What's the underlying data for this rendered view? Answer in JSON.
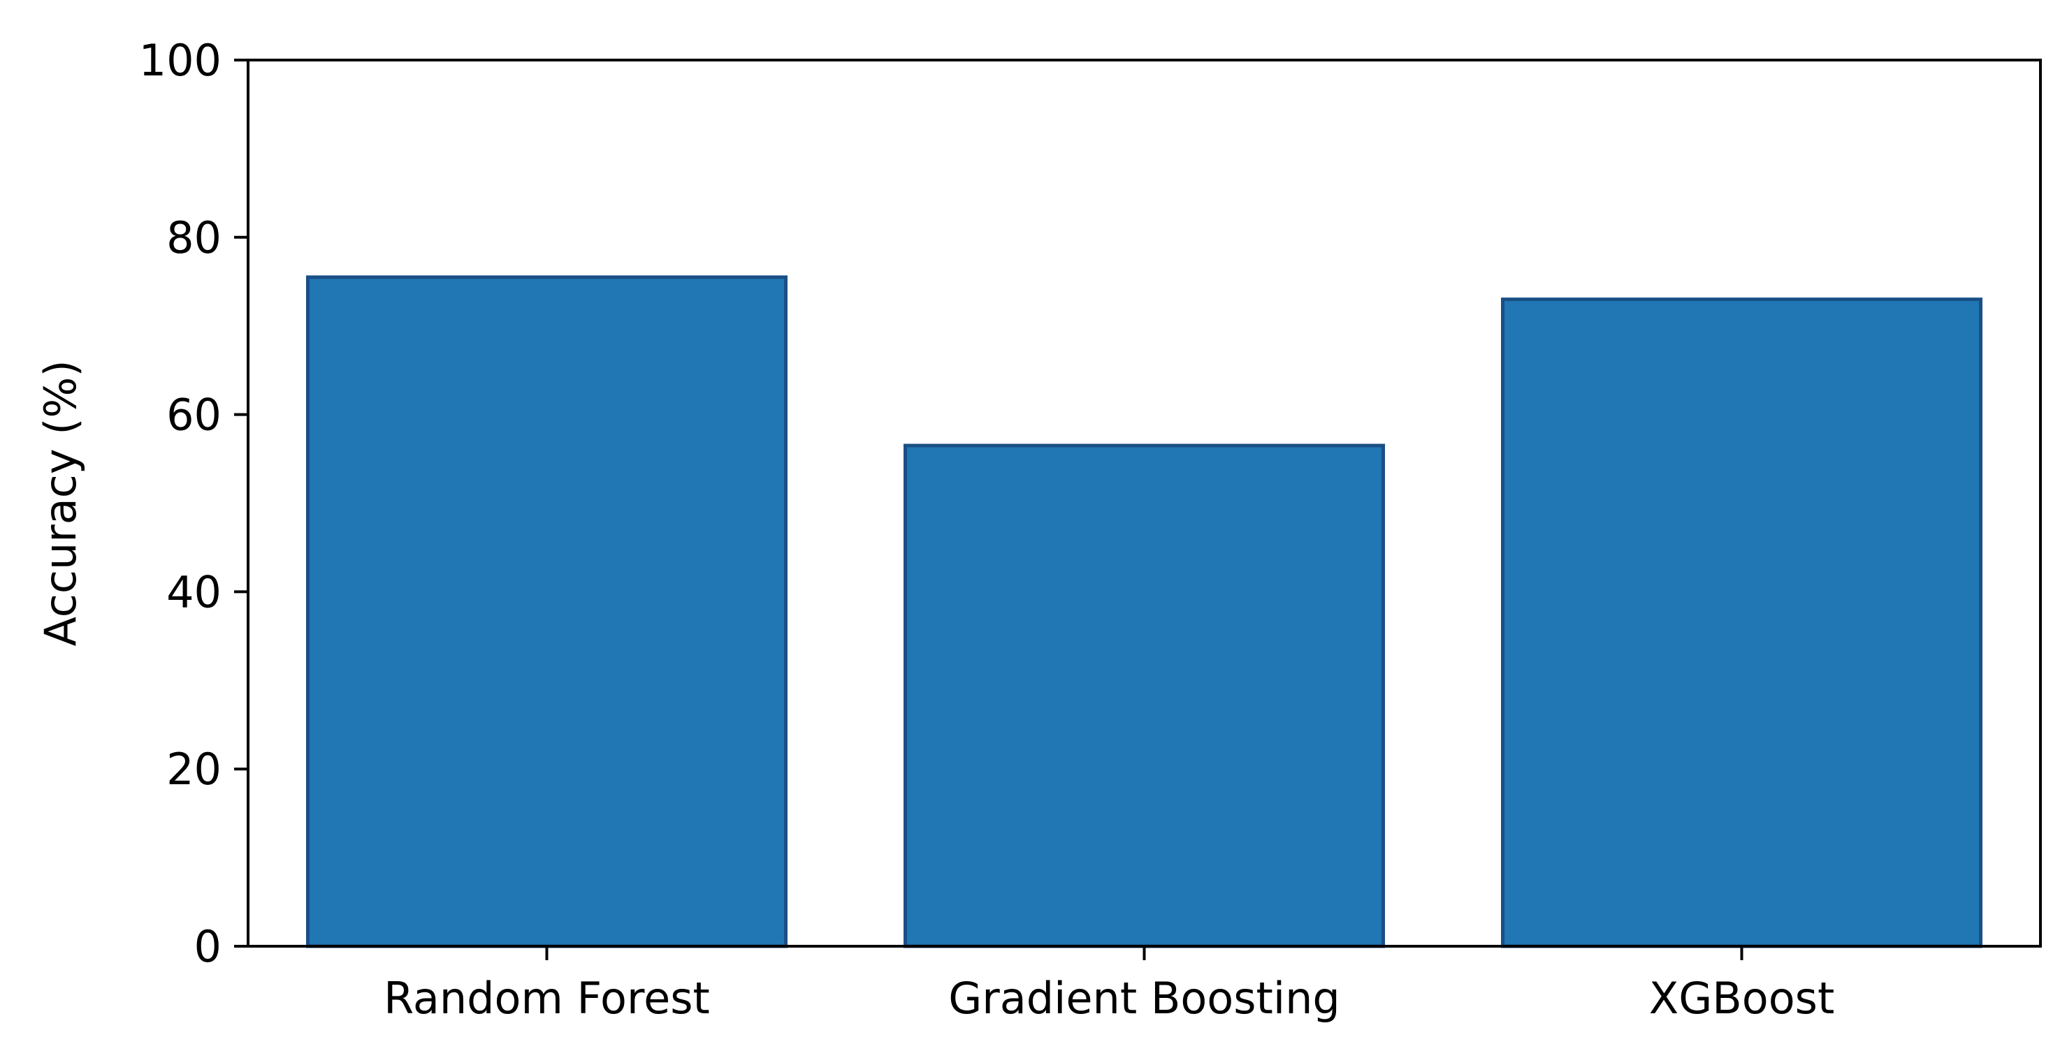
{
  "chart_data": {
    "type": "bar",
    "title": "",
    "xlabel": "",
    "ylabel": "Accuracy (%)",
    "categories": [
      "Random Forest",
      "Gradient Boosting",
      "XGBoost"
    ],
    "values": [
      75.5,
      56.5,
      73
    ],
    "ylim": [
      0,
      100
    ],
    "yticks": [
      0,
      20,
      40,
      60,
      80,
      100
    ],
    "grid": false,
    "legend": "none",
    "colors": {
      "bar_fill": "#2077b4",
      "bar_edge": "#1a4f86",
      "axis": "#000000",
      "text": "#000000"
    }
  }
}
